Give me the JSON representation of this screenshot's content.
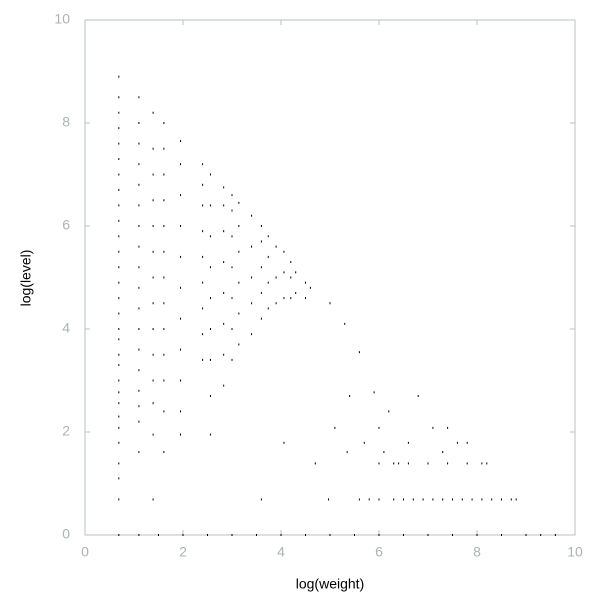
{
  "chart_data": {
    "type": "scatter",
    "xlabel": "log(weight)",
    "ylabel": "log(level)",
    "xlim": [
      0,
      10
    ],
    "ylim": [
      0,
      10
    ],
    "xticks": [
      0,
      2,
      4,
      6,
      8,
      10
    ],
    "yticks": [
      0,
      2,
      4,
      6,
      8,
      10
    ],
    "grid": false,
    "color": "#000000",
    "x": [
      0.69,
      0.69,
      0.69,
      0.69,
      0.69,
      0.69,
      0.69,
      0.69,
      0.69,
      0.69,
      0.69,
      0.69,
      0.69,
      0.69,
      0.69,
      0.69,
      0.69,
      0.69,
      0.69,
      0.69,
      0.69,
      0.69,
      0.69,
      0.69,
      0.69,
      0.69,
      0.69,
      0.69,
      0.69,
      1.1,
      1.1,
      1.1,
      1.1,
      1.1,
      1.1,
      1.1,
      1.1,
      1.1,
      1.1,
      1.1,
      1.1,
      1.1,
      1.1,
      1.1,
      1.1,
      1.1,
      1.1,
      1.39,
      1.39,
      1.39,
      1.39,
      1.39,
      1.39,
      1.39,
      1.39,
      1.39,
      1.39,
      1.39,
      1.39,
      1.39,
      1.39,
      1.61,
      1.61,
      1.61,
      1.61,
      1.61,
      1.61,
      1.61,
      1.61,
      1.61,
      1.61,
      1.61,
      1.61,
      1.61,
      1.95,
      1.95,
      1.95,
      1.95,
      1.95,
      1.95,
      1.95,
      1.95,
      1.95,
      1.95,
      1.95,
      2.4,
      2.4,
      2.4,
      2.4,
      2.4,
      2.4,
      2.4,
      2.4,
      2.4,
      2.56,
      2.56,
      2.56,
      2.56,
      2.56,
      2.56,
      2.56,
      2.56,
      2.56,
      2.83,
      2.83,
      2.83,
      2.83,
      2.83,
      2.83,
      2.83,
      2.83,
      3.0,
      3.0,
      3.0,
      3.0,
      3.0,
      3.0,
      3.0,
      3.14,
      3.14,
      3.14,
      3.14,
      3.14,
      3.14,
      3.4,
      3.4,
      3.4,
      3.4,
      3.4,
      3.6,
      3.6,
      3.6,
      3.6,
      3.6,
      3.6,
      3.74,
      3.74,
      3.74,
      3.74,
      3.9,
      3.9,
      3.9,
      4.06,
      4.06,
      4.06,
      4.06,
      4.2,
      4.2,
      4.2,
      4.3,
      4.3,
      4.5,
      4.5,
      4.6,
      4.7,
      4.97,
      5.0,
      5.1,
      5.3,
      5.35,
      5.4,
      5.6,
      5.7,
      5.9,
      6.0,
      6.1,
      6.2,
      6.4,
      6.6,
      6.8,
      7.0,
      7.1,
      7.3,
      7.4,
      7.6,
      7.8,
      8.2,
      5.6,
      5.8,
      6.0,
      6.3,
      6.5,
      6.7,
      6.9,
      7.1,
      7.3,
      7.5,
      7.7,
      7.9,
      8.1,
      8.3,
      8.5,
      8.7,
      8.8,
      6.0,
      6.3,
      6.6,
      7.0,
      7.4,
      7.8,
      8.1,
      0.69,
      1.1,
      1.5,
      2,
      2.5,
      3,
      3.5,
      4,
      4.5,
      5,
      5.5,
      6,
      6.5,
      7,
      7.5,
      8,
      8.5,
      9,
      9.3,
      9.6
    ],
    "values": [
      0.69,
      1.1,
      1.39,
      1.79,
      2.08,
      2.3,
      2.56,
      2.77,
      3.0,
      3.3,
      3.5,
      3.8,
      4.0,
      4.3,
      4.6,
      4.9,
      5.2,
      5.5,
      5.8,
      6.1,
      6.4,
      6.7,
      7.0,
      7.3,
      7.6,
      7.9,
      8.2,
      8.5,
      8.9,
      1.61,
      2.2,
      2.5,
      2.8,
      3.2,
      3.6,
      4.0,
      4.4,
      4.8,
      5.2,
      5.6,
      6.0,
      6.4,
      6.8,
      7.2,
      7.6,
      8.0,
      8.5,
      0.69,
      1.95,
      2.56,
      3.0,
      3.5,
      4.0,
      4.5,
      5.0,
      5.5,
      6.0,
      6.5,
      7.0,
      7.5,
      8.2,
      1.61,
      2.4,
      3.0,
      3.5,
      4.0,
      4.5,
      5.0,
      5.5,
      6.0,
      6.5,
      7.0,
      7.5,
      8.0,
      1.95,
      2.4,
      3.0,
      3.6,
      4.2,
      4.8,
      5.4,
      6.0,
      6.6,
      7.2,
      7.65,
      3.4,
      3.9,
      4.4,
      4.9,
      5.4,
      5.9,
      6.4,
      6.8,
      7.2,
      1.95,
      2.7,
      3.4,
      4.0,
      4.6,
      5.2,
      5.8,
      6.4,
      7.0,
      2.9,
      3.5,
      4.1,
      4.7,
      5.3,
      5.9,
      6.4,
      6.75,
      3.4,
      4.0,
      4.6,
      5.2,
      5.8,
      6.3,
      6.6,
      3.7,
      4.3,
      4.9,
      5.5,
      6.0,
      6.45,
      3.9,
      4.5,
      5.0,
      5.6,
      6.2,
      0.69,
      4.2,
      4.7,
      5.2,
      5.7,
      6.0,
      4.4,
      4.9,
      5.4,
      5.8,
      4.5,
      5.0,
      5.6,
      1.79,
      4.6,
      5.1,
      5.5,
      4.6,
      5.0,
      5.3,
      4.7,
      5.1,
      4.6,
      4.9,
      4.8,
      1.39,
      0.69,
      4.5,
      2.08,
      4.1,
      1.61,
      2.7,
      3.55,
      1.79,
      2.77,
      2.08,
      1.61,
      2.4,
      1.39,
      1.79,
      2.7,
      1.39,
      2.08,
      1.61,
      2.08,
      1.79,
      1.79,
      1.39,
      0.69,
      0.69,
      0.69,
      0.69,
      0.69,
      0.69,
      0.69,
      0.69,
      0.69,
      0.69,
      0.69,
      0.69,
      0.69,
      0.69,
      0.69,
      0.69,
      0.69,
      1.39,
      1.39,
      1.39,
      1.39,
      1.39,
      1.39,
      1.39,
      0,
      0,
      0,
      0,
      0,
      0,
      0,
      0,
      0,
      0,
      0,
      0,
      0,
      0,
      0,
      0,
      0,
      0,
      0,
      0
    ]
  }
}
